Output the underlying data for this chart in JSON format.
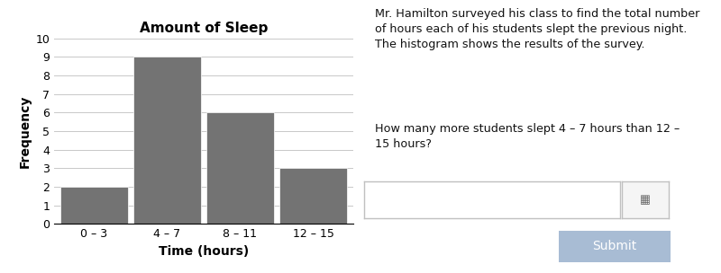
{
  "title": "Amount of Sleep",
  "xlabel": "Time (hours)",
  "ylabel": "Frequency",
  "categories": [
    "0 – 3",
    "4 – 7",
    "8 – 11",
    "12 – 15"
  ],
  "values": [
    2,
    9,
    6,
    3
  ],
  "bar_color": "#737373",
  "bar_edge_color": "#ffffff",
  "ylim": [
    0,
    10
  ],
  "yticks": [
    0,
    1,
    2,
    3,
    4,
    5,
    6,
    7,
    8,
    9,
    10
  ],
  "background_color": "#ffffff",
  "grid_color": "#c8c8c8",
  "title_fontsize": 11,
  "axis_label_fontsize": 10,
  "tick_fontsize": 9,
  "desc_text": "Mr. Hamilton surveyed his class to find the total number\nof hours each of his students slept the previous night.\nThe histogram shows the results of the survey.",
  "question_text": "How many more students slept 4 – 7 hours than 12 –\n15 hours?",
  "submit_color": "#a8bcd4",
  "submit_text_color": "#ffffff",
  "input_border_color": "#c0c0c0",
  "kbd_border_color": "#c0c0c0",
  "kbd_bg_color": "#f5f5f5"
}
